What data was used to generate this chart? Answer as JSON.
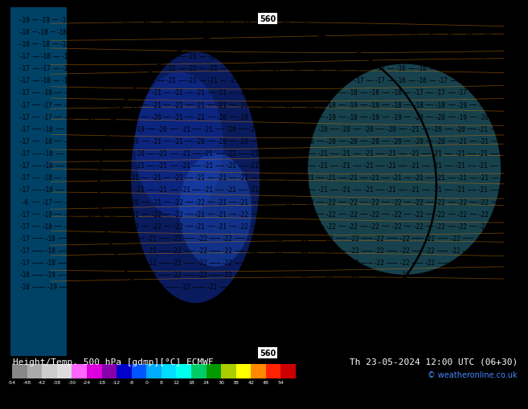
{
  "title_left": "Height/Temp. 500 hPa [gdmp][°C] ECMWF",
  "title_right": "Th 23-05-2024 12:00 UTC (06+30)",
  "copyright": "© weatheronline.co.uk",
  "colorbar_colors": [
    "#888888",
    "#aaaaaa",
    "#cccccc",
    "#dddddd",
    "#ff66ff",
    "#dd00dd",
    "#8800aa",
    "#0000cc",
    "#0055ff",
    "#00aaff",
    "#00ddff",
    "#00ffee",
    "#00cc66",
    "#009900",
    "#aacc00",
    "#ffff00",
    "#ff8800",
    "#ff2200",
    "#cc0000"
  ],
  "colorbar_labels": [
    "-54",
    "-48",
    "-42",
    "-38",
    "-30",
    "-24",
    "-18",
    "-12",
    "-8",
    "0",
    "8",
    "12",
    "18",
    "24",
    "30",
    "38",
    "42",
    "48",
    "54"
  ],
  "map_bg": "#00ccee",
  "left_strip_color": "#0077bb",
  "center_dark_color": "#1133aa",
  "center_mid_color": "#2255cc",
  "right_light_color": "#44bbdd",
  "footer_bg": "#000000",
  "text_color_white": "#ffffff",
  "copyright_color": "#4488ff",
  "footer_fontsize": 8,
  "map_label_fontsize": 5.5,
  "contour_label": "560",
  "contour_label_fontsize": 7
}
